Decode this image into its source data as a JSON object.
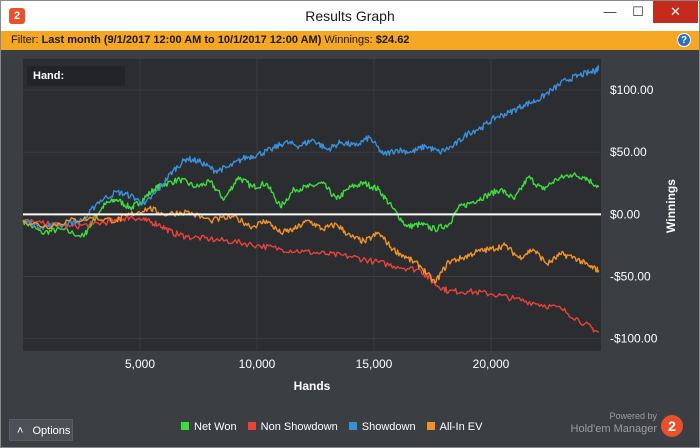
{
  "window": {
    "title": "Results Graph",
    "app_icon": "holdem-manager-icon",
    "min_glyph": "—",
    "max_glyph": "☐",
    "close_glyph": "✕"
  },
  "filter": {
    "label": "Filter:",
    "value": "Last month (9/1/2017 12:00 AM to 10/1/2017 12:00 AM)",
    "winnings_label": "Winnings:",
    "winnings_value": "$24.62",
    "help_glyph": "?"
  },
  "hand_box": {
    "label": "Hand:"
  },
  "options": {
    "label": "Options",
    "glyph": "˄"
  },
  "powered": {
    "line1": "Powered by",
    "line2": "Hold'em Manager",
    "logo_text": "2"
  },
  "colors": {
    "net_won": "#3ddc3d",
    "non_showdown": "#e8423a",
    "showdown": "#3a8fd9",
    "all_in_ev": "#f0912a",
    "zero_line": "#ffffff",
    "grid": "#3a3d42"
  },
  "chart_data": {
    "type": "line",
    "title": "",
    "xlabel": "Hands",
    "ylabel": "Winnings",
    "xlim": [
      0,
      24700
    ],
    "ylim": [
      -110,
      125
    ],
    "x_ticks": [
      5000,
      10000,
      15000,
      20000
    ],
    "x_tick_labels": [
      "5,000",
      "10,000",
      "15,000",
      "20,000"
    ],
    "y_ticks": [
      100,
      50,
      0,
      -50,
      -100
    ],
    "y_tick_labels": [
      "$100.00",
      "$50.00",
      "$0.00",
      "-$50.00",
      "-$100.00"
    ],
    "grid": true,
    "legend": "bottom",
    "series": [
      {
        "name": "Net Won",
        "color": "#3ddc3d",
        "x": [
          0,
          800,
          1600,
          2600,
          3000,
          3500,
          4000,
          4600,
          5000,
          5600,
          6000,
          6700,
          7400,
          8000,
          8600,
          9200,
          9800,
          10400,
          11000,
          11600,
          12200,
          12800,
          13400,
          14000,
          14600,
          15200,
          15800,
          16400,
          17000,
          17600,
          18200,
          18600,
          19200,
          19800,
          20400,
          21000,
          21600,
          22200,
          22800,
          23400,
          24000,
          24600
        ],
        "y": [
          -5,
          -15,
          -12,
          -18,
          -4,
          8,
          12,
          5,
          10,
          20,
          24,
          28,
          22,
          26,
          12,
          30,
          22,
          25,
          6,
          20,
          22,
          25,
          12,
          22,
          25,
          20,
          5,
          -10,
          -8,
          -12,
          -8,
          5,
          10,
          15,
          20,
          12,
          30,
          20,
          28,
          32,
          30,
          22
        ]
      },
      {
        "name": "Non Showdown",
        "color": "#e8423a",
        "x": [
          0,
          1000,
          2000,
          3000,
          4000,
          4600,
          5200,
          5800,
          6400,
          7000,
          8000,
          9000,
          10000,
          11000,
          12000,
          13000,
          14000,
          15000,
          16000,
          17000,
          17600,
          18200,
          19000,
          20000,
          21000,
          22000,
          23000,
          24000,
          24600
        ],
        "y": [
          -5,
          -8,
          -10,
          -8,
          -5,
          -2,
          -5,
          -8,
          -15,
          -18,
          -20,
          -22,
          -25,
          -28,
          -30,
          -32,
          -34,
          -38,
          -42,
          -45,
          -56,
          -62,
          -62,
          -64,
          -68,
          -72,
          -76,
          -88,
          -95
        ]
      },
      {
        "name": "Showdown",
        "color": "#3a8fd9",
        "x": [
          0,
          800,
          1600,
          2600,
          3200,
          4000,
          4600,
          5200,
          5800,
          6400,
          7000,
          7600,
          8200,
          8800,
          9400,
          10000,
          10600,
          11200,
          11800,
          12400,
          13000,
          13600,
          14200,
          14800,
          15400,
          16000,
          16600,
          17200,
          17800,
          18400,
          19000,
          19600,
          20200,
          20800,
          21400,
          22000,
          22600,
          23200,
          23800,
          24400,
          24600
        ],
        "y": [
          -5,
          -10,
          -8,
          -5,
          10,
          18,
          15,
          8,
          20,
          35,
          45,
          42,
          35,
          38,
          45,
          48,
          52,
          58,
          55,
          60,
          52,
          58,
          55,
          62,
          48,
          52,
          50,
          55,
          50,
          55,
          65,
          70,
          78,
          82,
          88,
          92,
          100,
          108,
          112,
          115,
          118
        ]
      },
      {
        "name": "All-In EV",
        "color": "#f0912a",
        "x": [
          0,
          1000,
          2000,
          3000,
          4000,
          4600,
          5400,
          6000,
          7000,
          8000,
          9000,
          9800,
          10400,
          11000,
          11600,
          12200,
          12800,
          13400,
          14000,
          14600,
          15200,
          15800,
          16400,
          17000,
          17600,
          18200,
          18800,
          19400,
          20000,
          20600,
          21200,
          21800,
          22400,
          23000,
          23600,
          24200,
          24600
        ],
        "y": [
          -5,
          -10,
          -5,
          -3,
          -5,
          0,
          5,
          0,
          2,
          -5,
          -2,
          -10,
          -5,
          -15,
          -12,
          -5,
          -12,
          -8,
          -18,
          -22,
          -15,
          -28,
          -35,
          -42,
          -55,
          -38,
          -35,
          -30,
          -28,
          -25,
          -35,
          -28,
          -40,
          -32,
          -35,
          -42,
          -45
        ]
      }
    ]
  }
}
